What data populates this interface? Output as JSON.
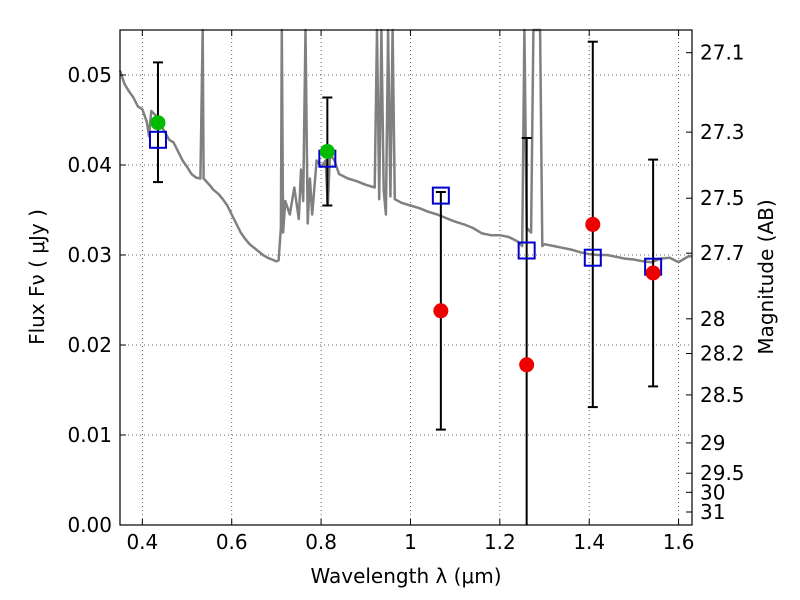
{
  "chart_data": {
    "type": "scatter",
    "xlabel": "Wavelength  λ (μm)",
    "ylabel": "Flux  Fν  ( μJy )",
    "ylabel_right": "Magnitude (AB)",
    "xlim": [
      0.35,
      1.63
    ],
    "ylim": [
      0.0,
      0.055
    ],
    "grid": true,
    "x_ticks": [
      {
        "value": 0.4,
        "label": "0.4"
      },
      {
        "value": 0.6,
        "label": "0.6"
      },
      {
        "value": 0.8,
        "label": "0.8"
      },
      {
        "value": 1.0,
        "label": "1"
      },
      {
        "value": 1.2,
        "label": "1.2"
      },
      {
        "value": 1.4,
        "label": "1.4"
      },
      {
        "value": 1.6,
        "label": "1.6"
      }
    ],
    "y_ticks": [
      {
        "value": 0.0,
        "label": "0.00"
      },
      {
        "value": 0.01,
        "label": "0.01"
      },
      {
        "value": 0.02,
        "label": "0.02"
      },
      {
        "value": 0.03,
        "label": "0.03"
      },
      {
        "value": 0.04,
        "label": "0.04"
      },
      {
        "value": 0.05,
        "label": "0.05"
      }
    ],
    "y_right_ticks": [
      {
        "label": "27.1",
        "value": 27.1
      },
      {
        "label": "27.3",
        "value": 27.3
      },
      {
        "label": "27.5",
        "value": 27.5
      },
      {
        "label": "27.7",
        "value": 27.7
      },
      {
        "label": "28",
        "value": 28.0
      },
      {
        "label": "28.2",
        "value": 28.2
      },
      {
        "label": "28.5",
        "value": 28.5
      },
      {
        "label": "29",
        "value": 29.0
      },
      {
        "label": "29.5",
        "value": 29.5
      },
      {
        "label": "30",
        "value": 30.0
      },
      {
        "label": "31",
        "value": 31.0
      }
    ],
    "model_sed": {
      "color": "#808080",
      "points": [
        [
          0.35,
          0.0505
        ],
        [
          0.36,
          0.049
        ],
        [
          0.37,
          0.0482
        ],
        [
          0.38,
          0.0475
        ],
        [
          0.39,
          0.0465
        ],
        [
          0.4,
          0.0462
        ],
        [
          0.41,
          0.0448
        ],
        [
          0.415,
          0.0432
        ],
        [
          0.42,
          0.046
        ],
        [
          0.43,
          0.0455
        ],
        [
          0.44,
          0.0445
        ],
        [
          0.45,
          0.0437
        ],
        [
          0.46,
          0.0428
        ],
        [
          0.47,
          0.0425
        ],
        [
          0.48,
          0.0415
        ],
        [
          0.49,
          0.0405
        ],
        [
          0.5,
          0.0398
        ],
        [
          0.51,
          0.039
        ],
        [
          0.52,
          0.0386
        ],
        [
          0.53,
          0.0385
        ],
        [
          0.535,
          0.055
        ],
        [
          0.537,
          0.0385
        ],
        [
          0.55,
          0.0378
        ],
        [
          0.56,
          0.0372
        ],
        [
          0.57,
          0.0368
        ],
        [
          0.58,
          0.0362
        ],
        [
          0.59,
          0.0355
        ],
        [
          0.6,
          0.0345
        ],
        [
          0.61,
          0.0335
        ],
        [
          0.62,
          0.0325
        ],
        [
          0.63,
          0.0318
        ],
        [
          0.64,
          0.0312
        ],
        [
          0.65,
          0.0308
        ],
        [
          0.66,
          0.0304
        ],
        [
          0.67,
          0.03
        ],
        [
          0.68,
          0.0297
        ],
        [
          0.69,
          0.0295
        ],
        [
          0.7,
          0.0293
        ],
        [
          0.705,
          0.0294
        ],
        [
          0.71,
          0.033
        ],
        [
          0.712,
          0.055
        ],
        [
          0.715,
          0.0325
        ],
        [
          0.72,
          0.036
        ],
        [
          0.73,
          0.0345
        ],
        [
          0.74,
          0.0375
        ],
        [
          0.75,
          0.034
        ],
        [
          0.755,
          0.0395
        ],
        [
          0.76,
          0.036
        ],
        [
          0.765,
          0.055
        ],
        [
          0.77,
          0.0335
        ],
        [
          0.775,
          0.0385
        ],
        [
          0.78,
          0.0345
        ],
        [
          0.79,
          0.0405
        ],
        [
          0.8,
          0.0398
        ],
        [
          0.81,
          0.0405
        ],
        [
          0.815,
          0.0355
        ],
        [
          0.82,
          0.0412
        ],
        [
          0.83,
          0.0405
        ],
        [
          0.84,
          0.039
        ],
        [
          0.86,
          0.0385
        ],
        [
          0.88,
          0.0382
        ],
        [
          0.9,
          0.0378
        ],
        [
          0.92,
          0.0375
        ],
        [
          0.925,
          0.055
        ],
        [
          0.93,
          0.0362
        ],
        [
          0.935,
          0.055
        ],
        [
          0.94,
          0.0372
        ],
        [
          0.945,
          0.0345
        ],
        [
          0.95,
          0.055
        ],
        [
          0.955,
          0.0365
        ],
        [
          0.96,
          0.055
        ],
        [
          0.965,
          0.0362
        ],
        [
          0.98,
          0.0358
        ],
        [
          1.0,
          0.0355
        ],
        [
          1.02,
          0.0352
        ],
        [
          1.04,
          0.0348
        ],
        [
          1.06,
          0.0345
        ],
        [
          1.08,
          0.0341
        ],
        [
          1.1,
          0.0337
        ],
        [
          1.12,
          0.0334
        ],
        [
          1.14,
          0.033
        ],
        [
          1.16,
          0.0324
        ],
        [
          1.18,
          0.0322
        ],
        [
          1.2,
          0.0322
        ],
        [
          1.22,
          0.032
        ],
        [
          1.24,
          0.0315
        ],
        [
          1.25,
          0.031
        ],
        [
          1.255,
          0.055
        ],
        [
          1.26,
          0.033
        ],
        [
          1.27,
          0.0325
        ],
        [
          1.275,
          0.055
        ],
        [
          1.28,
          0.055
        ],
        [
          1.29,
          0.055
        ],
        [
          1.295,
          0.031
        ],
        [
          1.3,
          0.0312
        ],
        [
          1.32,
          0.031
        ],
        [
          1.34,
          0.0308
        ],
        [
          1.36,
          0.0306
        ],
        [
          1.38,
          0.0303
        ],
        [
          1.4,
          0.0301
        ],
        [
          1.42,
          0.03
        ],
        [
          1.44,
          0.03
        ],
        [
          1.46,
          0.0298
        ],
        [
          1.48,
          0.0296
        ],
        [
          1.5,
          0.0295
        ],
        [
          1.52,
          0.0293
        ],
        [
          1.54,
          0.0292
        ],
        [
          1.56,
          0.0296
        ],
        [
          1.58,
          0.0297
        ],
        [
          1.6,
          0.0292
        ],
        [
          1.61,
          0.0295
        ],
        [
          1.62,
          0.0298
        ],
        [
          1.63,
          0.0299
        ]
      ]
    },
    "series": [
      {
        "marker": "square",
        "color": "#0000cc",
        "points": [
          {
            "x": 0.435,
            "y": 0.0428
          },
          {
            "x": 0.814,
            "y": 0.0407
          },
          {
            "x": 1.068,
            "y": 0.0366
          },
          {
            "x": 1.26,
            "y": 0.0305
          },
          {
            "x": 1.408,
            "y": 0.0297
          },
          {
            "x": 1.543,
            "y": 0.0287
          }
        ]
      },
      {
        "marker": "circle",
        "color": "#00bb00",
        "points": [
          {
            "x": 0.435,
            "y": 0.0447,
            "err_low": 0.0381,
            "err_high": 0.0514
          },
          {
            "x": 0.814,
            "y": 0.0415,
            "err_low": 0.0355,
            "err_high": 0.0475
          }
        ]
      },
      {
        "marker": "circle",
        "color": "#ee0000",
        "points": [
          {
            "x": 1.068,
            "y": 0.0238,
            "err_low": 0.0106,
            "err_high": 0.037
          },
          {
            "x": 1.26,
            "y": 0.0178,
            "err_low": 0.0,
            "err_high": 0.043
          },
          {
            "x": 1.408,
            "y": 0.0334,
            "err_low": 0.0131,
            "err_high": 0.0537
          },
          {
            "x": 1.543,
            "y": 0.028,
            "err_low": 0.0154,
            "err_high": 0.0406
          }
        ]
      }
    ]
  }
}
